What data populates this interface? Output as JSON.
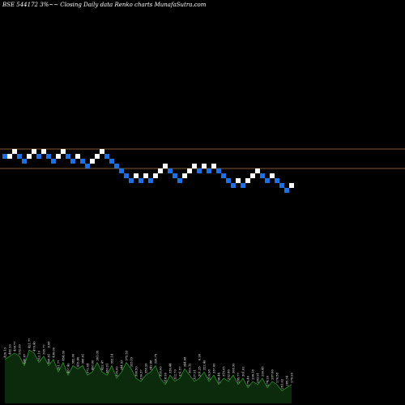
{
  "chart_data": {
    "type": "renko",
    "title": "BSE 544172  3%~~ Closing Daily data  Renko  charts MunafaSutra.com",
    "colors": {
      "background": "#000000",
      "up_brick": "#ffffff",
      "down_brick": "#1e6fe0",
      "reference_line": "#b07c3c",
      "volume_fill": "#0c2a0c",
      "volume_line": "#2fa62f"
    },
    "price_range": [
      0,
      40
    ],
    "reference_levels": [
      4,
      8
    ],
    "bricks": [
      {
        "dir": "down",
        "value": 6
      },
      {
        "dir": "up",
        "value": 6
      },
      {
        "dir": "up",
        "value": 7
      },
      {
        "dir": "down",
        "value": 6
      },
      {
        "dir": "down",
        "value": 5
      },
      {
        "dir": "up",
        "value": 6
      },
      {
        "dir": "up",
        "value": 7
      },
      {
        "dir": "down",
        "value": 6
      },
      {
        "dir": "up",
        "value": 7
      },
      {
        "dir": "down",
        "value": 6
      },
      {
        "dir": "down",
        "value": 5
      },
      {
        "dir": "up",
        "value": 6
      },
      {
        "dir": "up",
        "value": 7
      },
      {
        "dir": "down",
        "value": 6
      },
      {
        "dir": "down",
        "value": 5
      },
      {
        "dir": "up",
        "value": 6
      },
      {
        "dir": "down",
        "value": 5
      },
      {
        "dir": "down",
        "value": 4
      },
      {
        "dir": "up",
        "value": 5
      },
      {
        "dir": "up",
        "value": 6
      },
      {
        "dir": "up",
        "value": 7
      },
      {
        "dir": "down",
        "value": 6
      },
      {
        "dir": "down",
        "value": 5
      },
      {
        "dir": "down",
        "value": 4
      },
      {
        "dir": "down",
        "value": 3
      },
      {
        "dir": "down",
        "value": 2
      },
      {
        "dir": "down",
        "value": 1
      },
      {
        "dir": "up",
        "value": 2
      },
      {
        "dir": "down",
        "value": 1
      },
      {
        "dir": "up",
        "value": 2
      },
      {
        "dir": "down",
        "value": 1
      },
      {
        "dir": "up",
        "value": 2
      },
      {
        "dir": "up",
        "value": 3
      },
      {
        "dir": "up",
        "value": 4
      },
      {
        "dir": "down",
        "value": 3
      },
      {
        "dir": "down",
        "value": 2
      },
      {
        "dir": "down",
        "value": 1
      },
      {
        "dir": "up",
        "value": 2
      },
      {
        "dir": "up",
        "value": 3
      },
      {
        "dir": "up",
        "value": 4
      },
      {
        "dir": "down",
        "value": 3
      },
      {
        "dir": "up",
        "value": 4
      },
      {
        "dir": "down",
        "value": 3
      },
      {
        "dir": "up",
        "value": 4
      },
      {
        "dir": "down",
        "value": 3
      },
      {
        "dir": "down",
        "value": 2
      },
      {
        "dir": "down",
        "value": 1
      },
      {
        "dir": "down",
        "value": 0
      },
      {
        "dir": "up",
        "value": 1
      },
      {
        "dir": "down",
        "value": 0
      },
      {
        "dir": "up",
        "value": 1
      },
      {
        "dir": "up",
        "value": 2
      },
      {
        "dir": "up",
        "value": 3
      },
      {
        "dir": "down",
        "value": 2
      },
      {
        "dir": "down",
        "value": 1
      },
      {
        "dir": "up",
        "value": 2
      },
      {
        "dir": "down",
        "value": 1
      },
      {
        "dir": "down",
        "value": 0
      },
      {
        "dir": "down",
        "value": -1
      },
      {
        "dir": "up",
        "value": 0
      }
    ],
    "volume": [
      14,
      15,
      16,
      15,
      12,
      17,
      16,
      13,
      15,
      12,
      14,
      10,
      13,
      9,
      12,
      11,
      12,
      9,
      10,
      13,
      10,
      9,
      12,
      8,
      10,
      13,
      11,
      8,
      7,
      9,
      10,
      12,
      8,
      6,
      9,
      7,
      8,
      11,
      9,
      7,
      8,
      10,
      7,
      9,
      6,
      8,
      7,
      9,
      6,
      8,
      5,
      7,
      6,
      8,
      5,
      7,
      6,
      4,
      5,
      6
    ],
    "volume_labels": [
      "426.13",
      "482.20",
      "438.77",
      "532.00",
      "448.87",
      "421.77",
      "470.40",
      "512.10",
      "395.77",
      "408.61",
      "436.00",
      "391.77",
      "454.00",
      "407.40",
      "382.00",
      "415.66",
      "388.61",
      "372.04",
      "400.00",
      "361.05",
      "422.47",
      "380.51",
      "352.14",
      "395.00",
      "344.93",
      "375.53",
      "333.19",
      "368.50",
      "330.37",
      "358.26",
      "342.88",
      "326.75",
      "355.00",
      "318.90",
      "336.44",
      "312.70",
      "331.57",
      "344.08",
      "309.12",
      "327.91",
      "301.25",
      "322.40",
      "316.98",
      "337.60",
      "298.44",
      "315.05",
      "292.86",
      "308.30",
      "285.77",
      "301.62",
      "279.40",
      "296.18",
      "283.91",
      "290.45",
      "274.20",
      "287.66",
      "270.58",
      "281.02",
      "265.34",
      "276.90"
    ],
    "volume_peak_labels": [
      {
        "index": 9,
        "label": "6.68"
      },
      {
        "index": 40,
        "label": "6.90"
      }
    ]
  }
}
